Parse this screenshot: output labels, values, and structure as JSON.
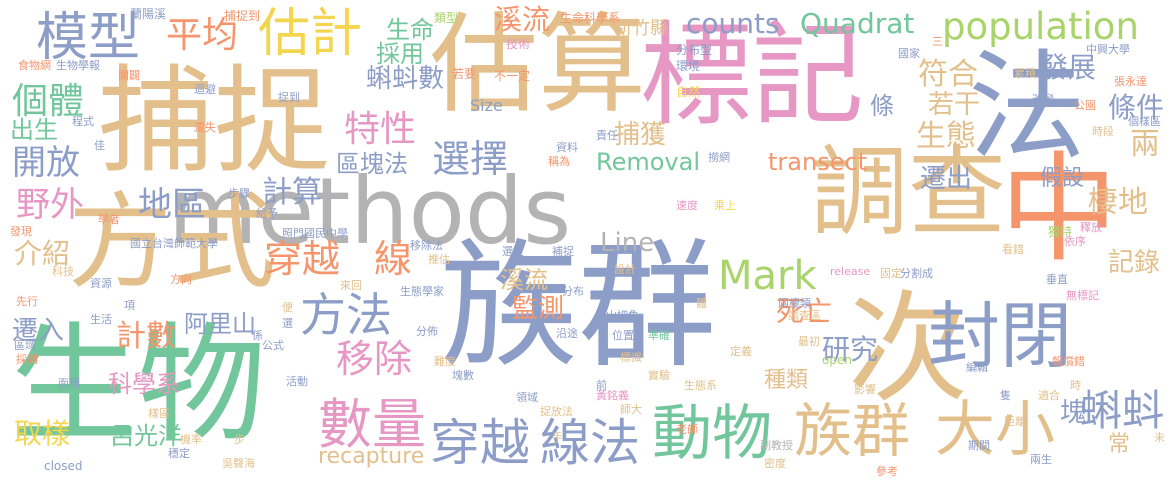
{
  "palette": {
    "blue": "#8c9dc7",
    "tan": "#e3c08b",
    "green": "#72c69c",
    "orange": "#f4956c",
    "pink": "#e697c4",
    "lime": "#a9d36b",
    "yellow": "#f3d54e",
    "gray": "#b3b3b3"
  },
  "words": [
    {
      "text": "族群",
      "color": "#8c9dc7"
    },
    {
      "text": "生物",
      "color": "#72c69c"
    },
    {
      "text": "methods",
      "color": "#b3b3b3"
    },
    {
      "text": "標記",
      "color": "#e697c4"
    },
    {
      "text": "估算",
      "color": "#e3c08b"
    },
    {
      "text": "捕捉",
      "color": "#e3c08b"
    },
    {
      "text": "方式",
      "color": "#e3c08b"
    },
    {
      "text": "次",
      "color": "#e3c08b"
    },
    {
      "text": "法",
      "color": "#8c9dc7"
    },
    {
      "text": "調查",
      "color": "#e3c08b"
    },
    {
      "text": "中",
      "color": "#f4956c"
    },
    {
      "text": "封閉",
      "color": "#8c9dc7"
    },
    {
      "text": "族群",
      "color": "#e3c08b"
    },
    {
      "text": "大小",
      "color": "#e3c08b"
    },
    {
      "text": "動物",
      "color": "#72c69c"
    },
    {
      "text": "數量",
      "color": "#e697c4"
    },
    {
      "text": "穿越",
      "color": "#8c9dc7"
    },
    {
      "text": "線法",
      "color": "#8c9dc7"
    },
    {
      "text": "模型",
      "color": "#8c9dc7"
    },
    {
      "text": "估計",
      "color": "#f3d54e"
    },
    {
      "text": "population",
      "color": "#a9d36b"
    },
    {
      "text": "方法",
      "color": "#8c9dc7"
    },
    {
      "text": "Mark",
      "color": "#a9d36b"
    },
    {
      "text": "移除",
      "color": "#e697c4"
    },
    {
      "text": "平均",
      "color": "#f4956c"
    },
    {
      "text": "counts",
      "color": "#8c9dc7"
    },
    {
      "text": "Quadrat",
      "color": "#72c69c"
    },
    {
      "text": "transect",
      "color": "#f4956c"
    },
    {
      "text": "穿越",
      "color": "#f4956c"
    },
    {
      "text": "線",
      "color": "#f4956c"
    },
    {
      "text": "選擇",
      "color": "#8c9dc7"
    },
    {
      "text": "特性",
      "color": "#e697c4"
    },
    {
      "text": "蝌蚪",
      "color": "#8c9dc7"
    },
    {
      "text": "個體",
      "color": "#72c69c"
    },
    {
      "text": "開放",
      "color": "#8c9dc7"
    },
    {
      "text": "野外",
      "color": "#e697c4"
    },
    {
      "text": "地區",
      "color": "#8c9dc7"
    },
    {
      "text": "介紹",
      "color": "#e3c08b"
    },
    {
      "text": "Removal",
      "color": "#72c69c"
    },
    {
      "text": "Line",
      "color": "#b3b3b3"
    },
    {
      "text": "recapture",
      "color": "#e3c08b"
    },
    {
      "text": "計算",
      "color": "#8c9dc7"
    },
    {
      "text": "發展",
      "color": "#8c9dc7"
    },
    {
      "text": "條件",
      "color": "#8c9dc7"
    },
    {
      "text": "符合",
      "color": "#e3c08b"
    },
    {
      "text": "生態",
      "color": "#e3c08b"
    },
    {
      "text": "兩",
      "color": "#e3c08b"
    },
    {
      "text": "棲地",
      "color": "#e3c08b"
    },
    {
      "text": "假設",
      "color": "#8c9dc7"
    },
    {
      "text": "遷出",
      "color": "#8c9dc7"
    },
    {
      "text": "研究",
      "color": "#8c9dc7"
    },
    {
      "text": "監測",
      "color": "#f4956c"
    },
    {
      "text": "死亡",
      "color": "#f4956c"
    },
    {
      "text": "記錄",
      "color": "#e3c08b"
    },
    {
      "text": "種類",
      "color": "#e3c08b"
    },
    {
      "text": "塊",
      "color": "#8c9dc7"
    },
    {
      "text": "常",
      "color": "#e3c08b"
    },
    {
      "text": "計數",
      "color": "#f4956c"
    },
    {
      "text": "阿里山",
      "color": "#8c9dc7"
    },
    {
      "text": "遷入",
      "color": "#8c9dc7"
    },
    {
      "text": "科學系",
      "color": "#e697c4"
    },
    {
      "text": "呂光洋",
      "color": "#72c69c"
    },
    {
      "text": "取樣",
      "color": "#f3d54e"
    },
    {
      "text": "蝌蚪數",
      "color": "#8c9dc7"
    },
    {
      "text": "區塊法",
      "color": "#8c9dc7"
    },
    {
      "text": "捕獲",
      "color": "#e3c08b"
    },
    {
      "text": "若干",
      "color": "#e3c08b"
    },
    {
      "text": "溪流",
      "color": "#f4956c"
    },
    {
      "text": "採用",
      "color": "#72c69c"
    },
    {
      "text": "生命",
      "color": "#72c69c"
    },
    {
      "text": "出生",
      "color": "#72c69c"
    },
    {
      "text": "溪流",
      "color": "#e3c08b"
    },
    {
      "text": "條",
      "color": "#8c9dc7"
    },
    {
      "text": "新竹縣",
      "color": "#e3c08b"
    },
    {
      "text": "生命科學系",
      "color": "#f4956c"
    },
    {
      "text": "蘭陽溪",
      "color": "#8c9dc7"
    },
    {
      "text": "捕捉到",
      "color": "#f4956c"
    },
    {
      "text": "類型",
      "color": "#a9d36b"
    },
    {
      "text": "技術",
      "color": "#e697c4"
    },
    {
      "text": "分布型",
      "color": "#8c9dc7"
    },
    {
      "text": "環境",
      "color": "#8c9dc7"
    },
    {
      "text": "自然",
      "color": "#f3d54e"
    },
    {
      "text": "不一定",
      "color": "#f4956c"
    },
    {
      "text": "若要",
      "color": "#f4956c"
    },
    {
      "text": "Size",
      "color": "#8c9dc7"
    },
    {
      "text": "責任",
      "color": "#8c9dc7"
    },
    {
      "text": "資料",
      "color": "#8c9dc7"
    },
    {
      "text": "稱為",
      "color": "#f4956c"
    },
    {
      "text": "撈網",
      "color": "#8c9dc7"
    },
    {
      "text": "速度",
      "color": "#e697c4"
    },
    {
      "text": "乘上",
      "color": "#f3d54e"
    },
    {
      "text": "獨特",
      "color": "#a9d36b"
    },
    {
      "text": "依序",
      "color": "#e697c4"
    },
    {
      "text": "釋放",
      "color": "#e697c4"
    },
    {
      "text": "看錯",
      "color": "#e3c08b"
    },
    {
      "text": "分割成",
      "color": "#8c9dc7"
    },
    {
      "text": "release",
      "color": "#e697c4"
    },
    {
      "text": "固定",
      "color": "#e3c08b"
    },
    {
      "text": "垂直",
      "color": "#8c9dc7"
    },
    {
      "text": "無標記",
      "color": "#e697c4"
    },
    {
      "text": "兩棲類",
      "color": "#8c9dc7"
    },
    {
      "text": "調查區",
      "color": "#e3c08b"
    },
    {
      "text": "最初",
      "color": "#e3c08b"
    },
    {
      "text": "定義",
      "color": "#e3c08b"
    },
    {
      "text": "open",
      "color": "#a9d36b"
    },
    {
      "text": "編輯",
      "color": "#8c9dc7"
    },
    {
      "text": "報償錯",
      "color": "#f4956c"
    },
    {
      "text": "影響",
      "color": "#e3c08b"
    },
    {
      "text": "適合",
      "color": "#e3c08b"
    },
    {
      "text": "距離",
      "color": "#e3c08b"
    },
    {
      "text": "期間",
      "color": "#8c9dc7"
    },
    {
      "text": "兩生",
      "color": "#8c9dc7"
    },
    {
      "text": "副教授",
      "color": "#b3b3b3"
    },
    {
      "text": "密度",
      "color": "#e3c08b"
    },
    {
      "text": "參考",
      "color": "#f4956c"
    },
    {
      "text": "黃銘義",
      "color": "#e697c4"
    },
    {
      "text": "師大",
      "color": "#e3c08b"
    },
    {
      "text": "老師",
      "color": "#f4956c"
    },
    {
      "text": "捉放法",
      "color": "#e3c08b"
    },
    {
      "text": "領域",
      "color": "#8c9dc7"
    },
    {
      "text": "實驗",
      "color": "#e3c08b"
    },
    {
      "text": "生態系",
      "color": "#e3c08b"
    },
    {
      "text": "標識",
      "color": "#e3c08b"
    },
    {
      "text": "位置",
      "color": "#8c9dc7"
    },
    {
      "text": "準確",
      "color": "#72c69c"
    },
    {
      "text": "沿途",
      "color": "#8c9dc7"
    },
    {
      "text": "山椒魚",
      "color": "#8c9dc7"
    },
    {
      "text": "分佈",
      "color": "#8c9dc7"
    },
    {
      "text": "生態學家",
      "color": "#8c9dc7"
    },
    {
      "text": "分布",
      "color": "#8c9dc7"
    },
    {
      "text": "移除法",
      "color": "#8c9dc7"
    },
    {
      "text": "推估",
      "color": "#e3c08b"
    },
    {
      "text": "選定",
      "color": "#8c9dc7"
    },
    {
      "text": "補捉",
      "color": "#8c9dc7"
    },
    {
      "text": "設計",
      "color": "#e3c08b"
    },
    {
      "text": "國立台灣師範大學",
      "color": "#8c9dc7"
    },
    {
      "text": "照門國民中學",
      "color": "#8c9dc7"
    },
    {
      "text": "學者",
      "color": "#f4956c"
    },
    {
      "text": "步驟",
      "color": "#8c9dc7"
    },
    {
      "text": "給予",
      "color": "#8c9dc7"
    },
    {
      "text": "發現",
      "color": "#f4956c"
    },
    {
      "text": "科技",
      "color": "#e3c08b"
    },
    {
      "text": "資源",
      "color": "#8c9dc7"
    },
    {
      "text": "方向",
      "color": "#f4956c"
    },
    {
      "text": "先行",
      "color": "#f4956c"
    },
    {
      "text": "生活",
      "color": "#8c9dc7"
    },
    {
      "text": "區域",
      "color": "#8c9dc7"
    },
    {
      "text": "採到",
      "color": "#f4956c"
    },
    {
      "text": "面積",
      "color": "#8c9dc7"
    },
    {
      "text": "活動",
      "color": "#8c9dc7"
    },
    {
      "text": "塊數",
      "color": "#8c9dc7"
    },
    {
      "text": "難度",
      "color": "#e3c08b"
    },
    {
      "text": "樣區",
      "color": "#e3c08b"
    },
    {
      "text": "機率",
      "color": "#e3c08b"
    },
    {
      "text": "穩定",
      "color": "#8c9dc7"
    },
    {
      "text": "吳聲海",
      "color": "#e3c08b"
    },
    {
      "text": "closed",
      "color": "#8c9dc7"
    },
    {
      "text": "食物網",
      "color": "#f4956c"
    },
    {
      "text": "生物學報",
      "color": "#8c9dc7"
    },
    {
      "text": "開闢",
      "color": "#f4956c"
    },
    {
      "text": "迴避",
      "color": "#8c9dc7"
    },
    {
      "text": "捉到",
      "color": "#8c9dc7"
    },
    {
      "text": "遺失",
      "color": "#f4956c"
    },
    {
      "text": "程式",
      "color": "#8c9dc7"
    },
    {
      "text": "佳",
      "color": "#8c9dc7"
    },
    {
      "text": "國家",
      "color": "#8c9dc7"
    },
    {
      "text": "累積",
      "color": "#e3c08b"
    },
    {
      "text": "中興大學",
      "color": "#8c9dc7"
    },
    {
      "text": "張永達",
      "color": "#f4956c"
    },
    {
      "text": "改變",
      "color": "#8c9dc7"
    },
    {
      "text": "公園",
      "color": "#f4956c"
    },
    {
      "text": "時段",
      "color": "#e3c08b"
    },
    {
      "text": "個樣區",
      "color": "#8c9dc7"
    },
    {
      "text": "三",
      "color": "#f4956c"
    },
    {
      "text": "項",
      "color": "#8c9dc7"
    },
    {
      "text": "便",
      "color": "#e3c08b"
    },
    {
      "text": "選",
      "color": "#8c9dc7"
    },
    {
      "text": "公式",
      "color": "#8c9dc7"
    },
    {
      "text": "係",
      "color": "#8c9dc7"
    },
    {
      "text": "體",
      "color": "#e3c08b"
    },
    {
      "text": "前",
      "color": "#8c9dc7"
    },
    {
      "text": "手",
      "color": "#e3c08b"
    },
    {
      "text": "步",
      "color": "#e3c08b"
    },
    {
      "text": "隻",
      "color": "#8c9dc7"
    },
    {
      "text": "時",
      "color": "#e3c08b"
    },
    {
      "text": "未",
      "color": "#e3c08b"
    },
    {
      "text": "來回",
      "color": "#e3c08b"
    }
  ]
}
